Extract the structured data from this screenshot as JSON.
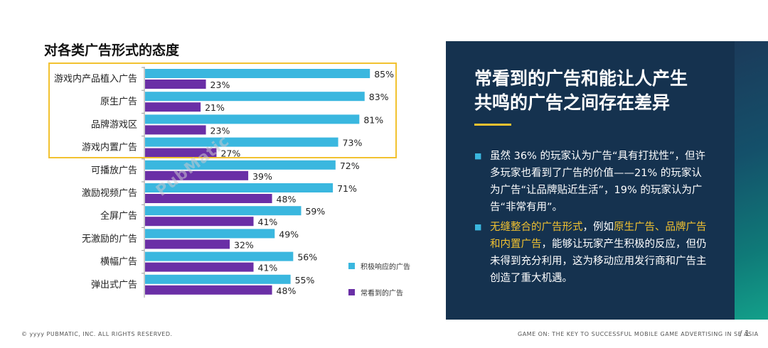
{
  "chart_data": {
    "type": "bar",
    "orientation": "horizontal",
    "title": "对各类广告形式的态度",
    "categories": [
      "游戏内产品植入广告",
      "原生广告",
      "品牌游戏区",
      "游戏内置广告",
      "可播放广告",
      "激励视频广告",
      "全屏广告",
      "无激励的广告",
      "横幅广告",
      "弹出式广告"
    ],
    "series": [
      {
        "name": "积极响应的广告",
        "color": "#3ab7df",
        "values": [
          85,
          83,
          81,
          73,
          72,
          71,
          59,
          49,
          56,
          55
        ],
        "labels": [
          "85%",
          "83%",
          "81%",
          "73%",
          "72%",
          "71%",
          "59%",
          "49%",
          "56%",
          "55%"
        ]
      },
      {
        "name": "常看到的广告",
        "color": "#6a2fa6",
        "values": [
          23,
          21,
          23,
          27,
          39,
          48,
          41,
          32,
          41,
          48
        ],
        "labels": [
          "23%",
          "21%",
          "23%",
          "27%",
          "39%",
          "48%",
          "41%",
          "32%",
          "41%",
          "48%"
        ]
      }
    ],
    "xlim": [
      0,
      100
    ],
    "grid": false,
    "legend_position": "right"
  },
  "watermark": "PubMatic",
  "panel": {
    "title_line1": "常看到的广告和能让人产生",
    "title_line2": "共鸣的广告之间存在差异",
    "bullet_marker": "■",
    "bullet1": "虽然 36% 的玩家认为广告“具有打扰性”，但许多玩家也看到了广告的价值——21% 的玩家认为广告“让品牌贴近生活”，19% 的玩家认为广告“非常有用”。",
    "bullet2_hl1": "无缝整合的广告形式",
    "bullet2_mid": "，例如",
    "bullet2_hl2": "原生广告、品牌广告和内置广告",
    "bullet2_rest": "，能够让玩家产生积极的反应，但仍未得到充分利用，这为移动应用发行商和广告主创造了重大机遇。"
  },
  "footer": {
    "left": "© yyyy PUBMATIC, INC. ALL RIGHTS RESERVED.",
    "right": "GAME ON: THE KEY TO SUCCESSFUL MOBILE GAME ADVERTISING IN SE ASIA",
    "page": "/ 1"
  },
  "colors": {
    "accent": "#f2c230",
    "panel_bg": "#15324f",
    "bar_blue": "#3ab7df",
    "bar_purple": "#6a2fa6"
  }
}
